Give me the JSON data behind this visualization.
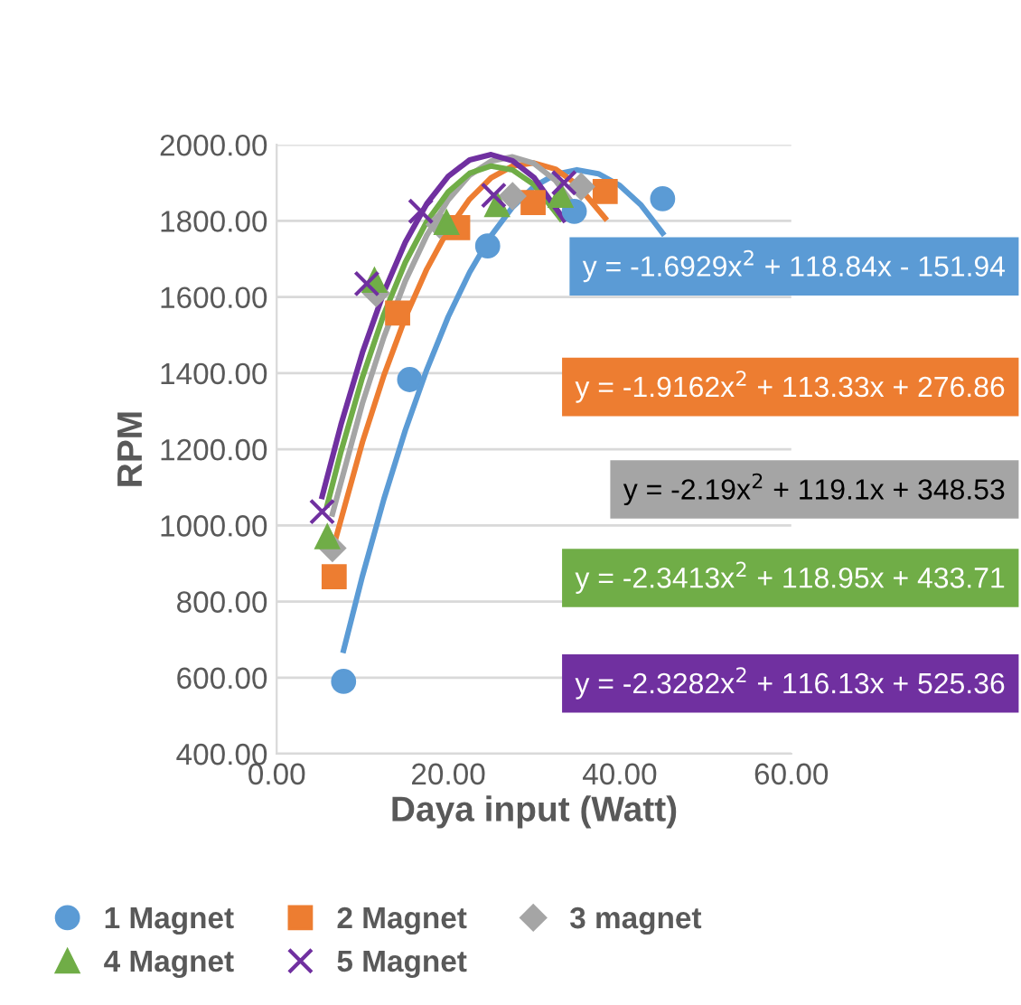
{
  "chart_data": {
    "type": "scatter",
    "xlabel": "Daya input (Watt)",
    "ylabel": "RPM",
    "xlim": [
      0,
      60
    ],
    "ylim": [
      400,
      2000
    ],
    "xticks": [
      {
        "value": 0,
        "label": "0.00"
      },
      {
        "value": 20,
        "label": "20.00"
      },
      {
        "value": 40,
        "label": "40.00"
      },
      {
        "value": 60,
        "label": "60.00"
      }
    ],
    "yticks": [
      {
        "value": 400,
        "label": "400.00"
      },
      {
        "value": 600,
        "label": "600.00"
      },
      {
        "value": 800,
        "label": "800.00"
      },
      {
        "value": 1000,
        "label": "1000.00"
      },
      {
        "value": 1200,
        "label": "1200.00"
      },
      {
        "value": 1400,
        "label": "1400.00"
      },
      {
        "value": 1600,
        "label": "1600.00"
      },
      {
        "value": 1800,
        "label": "1800.00"
      },
      {
        "value": 2000,
        "label": "2000.00"
      }
    ],
    "grid": "y",
    "legend": "bottom",
    "series": [
      {
        "name": "1 Magnet",
        "marker": "circle",
        "color": "#5b9bd5",
        "x": [
          7.8,
          15.5,
          24.6,
          34.7,
          45.0
        ],
        "values": [
          590,
          1383,
          1734,
          1825,
          1858
        ]
      },
      {
        "name": "2 Magnet",
        "marker": "square",
        "color": "#ed7d31",
        "x": [
          6.7,
          14.1,
          21.1,
          29.9,
          38.3
        ],
        "values": [
          865,
          1558,
          1782,
          1848,
          1877
        ]
      },
      {
        "name": "3 magnet",
        "marker": "diamond",
        "color": "#a5a5a5",
        "x": [
          6.5,
          11.6,
          19.0,
          27.5,
          35.5
        ],
        "values": [
          940,
          1610,
          1790,
          1865,
          1890
        ]
      },
      {
        "name": "4 Magnet",
        "marker": "triangle",
        "color": "#70ad47",
        "x": [
          5.9,
          11.4,
          19.8,
          25.7,
          33.1
        ],
        "values": [
          970,
          1644,
          1796,
          1843,
          1867
        ]
      },
      {
        "name": "5 Magnet",
        "marker": "cross",
        "color": "#7030a0",
        "x": [
          5.3,
          10.5,
          16.8,
          25.3,
          33.5
        ],
        "values": [
          1036,
          1635,
          1825,
          1867,
          1900
        ]
      },
      {
        "type": "line",
        "color": "#5b9bd5",
        "x": [
          7.8,
          10,
          12.5,
          15,
          17.5,
          20,
          22.5,
          25,
          27.5,
          30,
          32.5,
          35,
          37.5,
          40,
          42.5,
          45
        ],
        "values": [
          672,
          867,
          1069,
          1250,
          1409,
          1548,
          1665,
          1761,
          1836,
          1890,
          1922,
          1934,
          1924,
          1893,
          1841,
          1768
        ]
      },
      {
        "type": "line",
        "color": "#ed7d31",
        "x": [
          6.7,
          10,
          12.5,
          15,
          17.5,
          20,
          22.5,
          25,
          27.5,
          30,
          32.5,
          35,
          38.3
        ],
        "values": [
          950,
          1219,
          1394,
          1546,
          1673,
          1777,
          1857,
          1913,
          1944,
          1952,
          1936,
          1896,
          1807
        ]
      },
      {
        "type": "line",
        "color": "#a5a5a5",
        "x": [
          6.5,
          10,
          12.5,
          15,
          17.5,
          20,
          22.5,
          25,
          27.5,
          30,
          32.5,
          35.5
        ],
        "values": [
          1030,
          1321,
          1495,
          1642,
          1762,
          1855,
          1920,
          1957,
          1968,
          1951,
          1906,
          1817
        ]
      },
      {
        "type": "line",
        "color": "#70ad47",
        "x": [
          5.9,
          7.5,
          10,
          12.5,
          15,
          17.5,
          20,
          22.5,
          25,
          27.5,
          30,
          33.1
        ],
        "values": [
          1054,
          1194,
          1389,
          1555,
          1691,
          1798,
          1876,
          1925,
          1944,
          1934,
          1895,
          1806
        ]
      },
      {
        "type": "line",
        "color": "#7030a0",
        "x": [
          5.3,
          7.5,
          10,
          12.5,
          15,
          17.5,
          20,
          22.5,
          25,
          27.5,
          30,
          33.5
        ],
        "values": [
          1076,
          1265,
          1454,
          1613,
          1744,
          1845,
          1917,
          1960,
          1974,
          1958,
          1914,
          1803
        ]
      }
    ],
    "annotations": [
      "y = -1.6929x$^{2}$ + 118.84x - 151.94",
      "y = -1.9162x$^{2}$ + 113.33x + 276.86",
      "y = -2.19x$^{2}$ + 119.1x + 348.53",
      "y = -2.3413x$^{2}$ + 118.95x + 433.71",
      "y = -2.3282x$^{2}$ + 116.13x + 525.36"
    ]
  }
}
